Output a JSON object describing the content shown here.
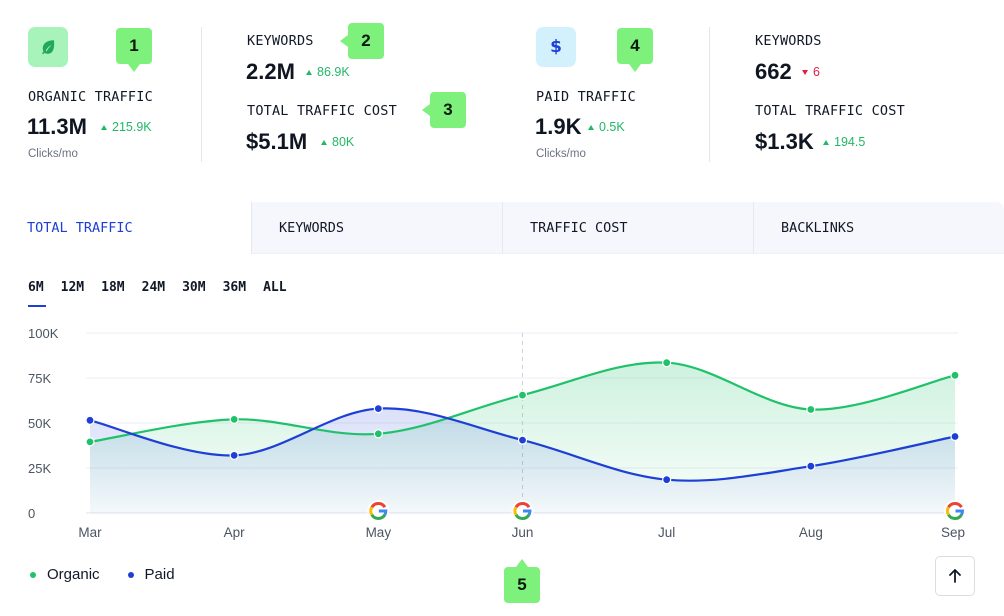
{
  "metrics": {
    "organic": {
      "icon": "leaf-icon",
      "label": "ORGANIC TRAFFIC",
      "value": "11.3M",
      "delta": "215.9K",
      "unit": "Clicks/mo"
    },
    "organic_keywords": {
      "label": "KEYWORDS",
      "value": "2.2M",
      "delta": "86.9K"
    },
    "organic_cost": {
      "label": "TOTAL TRAFFIC COST",
      "value": "$5.1M",
      "delta": "80K"
    },
    "paid": {
      "icon": "dollar-icon",
      "label": "PAID TRAFFIC",
      "value": "1.9K",
      "delta": "0.5K",
      "unit": "Clicks/mo"
    },
    "paid_keywords": {
      "label": "KEYWORDS",
      "value": "662",
      "delta": "6"
    },
    "paid_cost": {
      "label": "TOTAL TRAFFIC COST",
      "value": "$1.3K",
      "delta": "194.5"
    }
  },
  "callouts": [
    "1",
    "2",
    "3",
    "4",
    "5"
  ],
  "tabs": [
    {
      "label": "TOTAL TRAFFIC",
      "active": true
    },
    {
      "label": "KEYWORDS",
      "active": false
    },
    {
      "label": "TRAFFIC COST",
      "active": false
    },
    {
      "label": "BACKLINKS",
      "active": false
    }
  ],
  "ranges": [
    {
      "label": "6M",
      "active": true
    },
    {
      "label": "12M",
      "active": false
    },
    {
      "label": "18M",
      "active": false
    },
    {
      "label": "24M",
      "active": false
    },
    {
      "label": "30M",
      "active": false
    },
    {
      "label": "36M",
      "active": false
    },
    {
      "label": "ALL",
      "active": false
    }
  ],
  "colors": {
    "organic": "#1fc26a",
    "paid": "#1d3fd6",
    "accent": "#1d3fd6",
    "callout": "#7ef07c",
    "up": "#22b866",
    "down": "#e11d48"
  },
  "chart_data": {
    "type": "line",
    "x": [
      "Mar",
      "Apr",
      "May",
      "Jun",
      "Jul",
      "Aug",
      "Sep"
    ],
    "yticks": [
      "0",
      "25K",
      "50K",
      "75K",
      "100K"
    ],
    "ylim": [
      0,
      100000
    ],
    "series": [
      {
        "name": "Organic",
        "values": [
          39500,
          52000,
          44000,
          65500,
          83500,
          57500,
          76500
        ]
      },
      {
        "name": "Paid",
        "values": [
          51500,
          32000,
          58000,
          40500,
          18500,
          26000,
          42500
        ]
      }
    ],
    "annotation_markers": [
      {
        "x": "May",
        "icon": "google-icon"
      },
      {
        "x": "Jun",
        "icon": "google-icon"
      },
      {
        "x": "Sep",
        "icon": "google-icon"
      }
    ],
    "hover_x": "Jun",
    "grid": true,
    "legend": "bottom-left"
  },
  "legend": [
    {
      "label": "Organic"
    },
    {
      "label": "Paid"
    }
  ],
  "scroll_top_icon": "arrow-up-icon"
}
